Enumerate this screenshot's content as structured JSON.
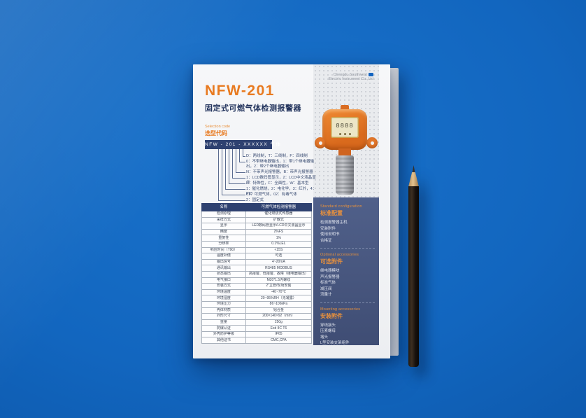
{
  "page": {
    "company": {
      "line1": "Chengdu Southwest",
      "line2": "Electric Instrument Co.,Ltd"
    },
    "title": "NFW-201",
    "subtitle": "固定式可燃气体检测报警器",
    "selection": {
      "label_en": "Selection code",
      "label_zh": "选型代码",
      "code_bar": "NFW - 201 - XXXXXX 气体",
      "lines": [
        "D：两线制，T：三线制，F：四线制",
        "0：不带继电器输出，1：带1个继电器输出，2：带2个继电器输出",
        "N：不带声光报警器，B：带声光报警器",
        "1：LCD数码管显示，2：LCD中文液晶显示",
        "H：特殊性，F：全面性，W：基本型",
        "1：催化燃烧，2：电化学，3：红外，4：PID",
        "01：可燃气体，02：有毒气体",
        "2：固定式"
      ]
    },
    "spec_table": {
      "header": {
        "name": "名称",
        "value": "可燃气体检测报警器"
      },
      "rows": [
        {
          "label": "检测原理",
          "value": "催化燃烧式传感器"
        },
        {
          "label": "采样方式",
          "value": "扩散式"
        },
        {
          "label": "显示",
          "value": "LED数码管显示/LCD中文液晶显示"
        },
        {
          "label": "精度",
          "value": "2%FS"
        },
        {
          "label": "重复性",
          "value": "1%"
        },
        {
          "label": "分辨率",
          "value": "0.1%LEL"
        },
        {
          "label": "响应时间（T90）",
          "value": "<15S"
        },
        {
          "label": "温度补偿",
          "value": "可选"
        },
        {
          "label": "输出信号",
          "value": "4~20mA"
        },
        {
          "label": "通讯输出",
          "value": "RS485 MODBUS"
        },
        {
          "label": "状态输出",
          "value": "高报警、低报警、故障（继电器输出）"
        },
        {
          "label": "电气接口",
          "value": "M20*1.5内螺纹"
        },
        {
          "label": "安装方式",
          "value": "2″立管/现场安装"
        },
        {
          "label": "环境温度",
          "value": "-40~70℃"
        },
        {
          "label": "环境湿度",
          "value": "20~95%RH（无凝露）"
        },
        {
          "label": "环境压力",
          "value": "86~106kPa"
        },
        {
          "label": "壳体材质",
          "value": "铝合金"
        },
        {
          "label": "外形尺寸",
          "value": "200×140×92（mm）"
        },
        {
          "label": "重量",
          "value": "250g"
        },
        {
          "label": "防爆认证",
          "value": "Exd IIC T6"
        },
        {
          "label": "外壳防护等级",
          "value": "IP65"
        },
        {
          "label": "其他证书",
          "value": "CMC,CPA"
        }
      ]
    },
    "sidebar": {
      "sections": [
        {
          "en": "Standard configuration",
          "zh": "标准配置",
          "items": [
            "检测报警器主机",
            "安装附件",
            "使用说明书",
            "合格证"
          ]
        },
        {
          "en": "Optional accessories",
          "zh": "可选附件",
          "items": [
            "继电器模块",
            "声光报警器",
            "标准气体",
            "减压阀",
            "流量计"
          ]
        },
        {
          "en": "Mounting accessories",
          "zh": "安装附件",
          "items": [
            "穿线接头",
            "压紧螺母",
            "堵头",
            "L型安装支架组件"
          ]
        }
      ]
    },
    "device": {
      "display_digits": "8888"
    }
  },
  "colors": {
    "accent_orange": "#E87A20",
    "navy": "#2E4170",
    "sidebar_blue": "#47567E",
    "background_blue": "#1266BF",
    "pencil_black": "#17110D"
  }
}
